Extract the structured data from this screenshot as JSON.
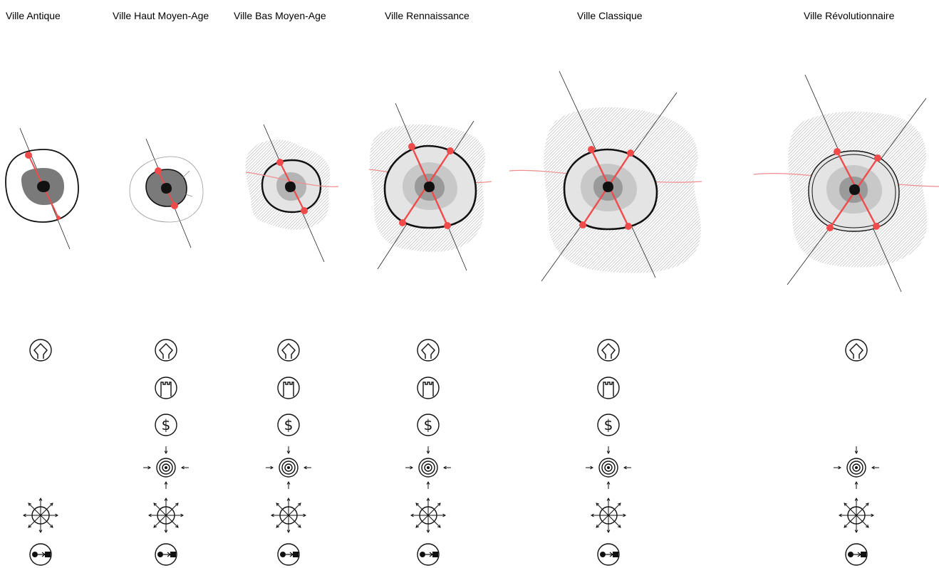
{
  "columns": [
    {
      "title": "Ville Antique",
      "icons": [
        "temple-icon",
        "radiating-routes-icon",
        "trade-arrow-icon"
      ]
    },
    {
      "title": "Ville Haut Moyen-Age",
      "icons": [
        "temple-icon",
        "tower-icon",
        "dollar-icon",
        "concentric-target-icon",
        "radiating-routes-icon",
        "trade-arrow-icon"
      ]
    },
    {
      "title": "Ville Bas Moyen-Age",
      "icons": [
        "temple-icon",
        "tower-icon",
        "dollar-icon",
        "concentric-target-icon",
        "radiating-routes-icon",
        "trade-arrow-icon"
      ]
    },
    {
      "title": "Ville Rennaissance",
      "icons": [
        "temple-icon",
        "tower-icon",
        "dollar-icon",
        "concentric-target-icon",
        "radiating-routes-icon",
        "trade-arrow-icon"
      ]
    },
    {
      "title": "Ville Classique",
      "icons": [
        "temple-icon",
        "tower-icon",
        "dollar-icon",
        "concentric-target-icon",
        "radiating-routes-icon",
        "trade-arrow-icon"
      ]
    },
    {
      "title": "Ville Révolutionnaire",
      "icons": [
        "temple-icon",
        "concentric-target-icon",
        "radiating-routes-icon",
        "trade-arrow-icon"
      ]
    }
  ],
  "colors": {
    "accent_red": "#f04a4a",
    "hatch": "#8a8a8a",
    "core_dark": "#7a7a7a",
    "core_black": "#111111",
    "ring_light": "#e4e4e4"
  }
}
